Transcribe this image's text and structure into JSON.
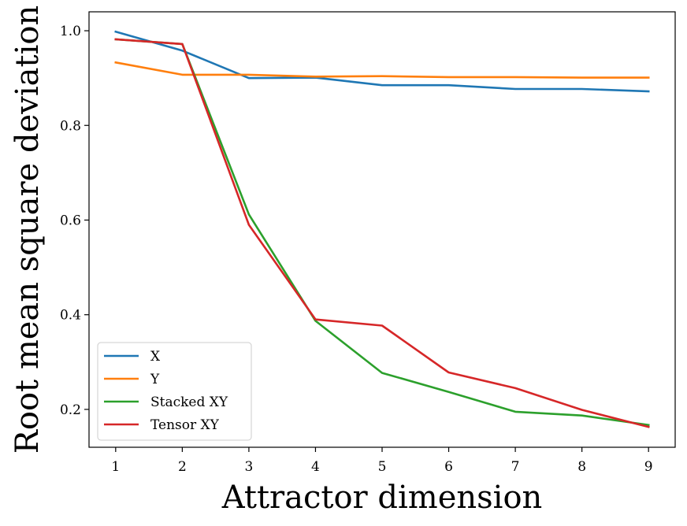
{
  "chart_data": {
    "type": "line",
    "xlabel": "Attractor dimension",
    "ylabel": "Root mean square deviation",
    "x": [
      1,
      2,
      3,
      4,
      5,
      6,
      7,
      8,
      9
    ],
    "xlim": [
      0.6,
      9.4
    ],
    "ylim": [
      0.12,
      1.04
    ],
    "xticks": [
      "1",
      "2",
      "3",
      "4",
      "5",
      "6",
      "7",
      "8",
      "9"
    ],
    "yticks": [
      "0.2",
      "0.4",
      "0.6",
      "0.8",
      "1.0"
    ],
    "grid": false,
    "legend_position": "lower-left",
    "series": [
      {
        "name": "X",
        "color": "#1f77b4",
        "values": [
          0.998,
          0.958,
          0.9,
          0.901,
          0.885,
          0.885,
          0.877,
          0.877,
          0.872
        ]
      },
      {
        "name": "Y",
        "color": "#ff7f0e",
        "values": [
          0.933,
          0.907,
          0.907,
          0.903,
          0.904,
          0.902,
          0.902,
          0.901,
          0.901
        ]
      },
      {
        "name": "Stacked XY",
        "color": "#2ca02c",
        "values": [
          0.982,
          0.972,
          0.612,
          0.387,
          0.277,
          0.237,
          0.195,
          0.187,
          0.167
        ]
      },
      {
        "name": "Tensor XY",
        "color": "#d62728",
        "values": [
          0.982,
          0.972,
          0.59,
          0.39,
          0.377,
          0.278,
          0.245,
          0.199,
          0.163
        ]
      }
    ]
  }
}
